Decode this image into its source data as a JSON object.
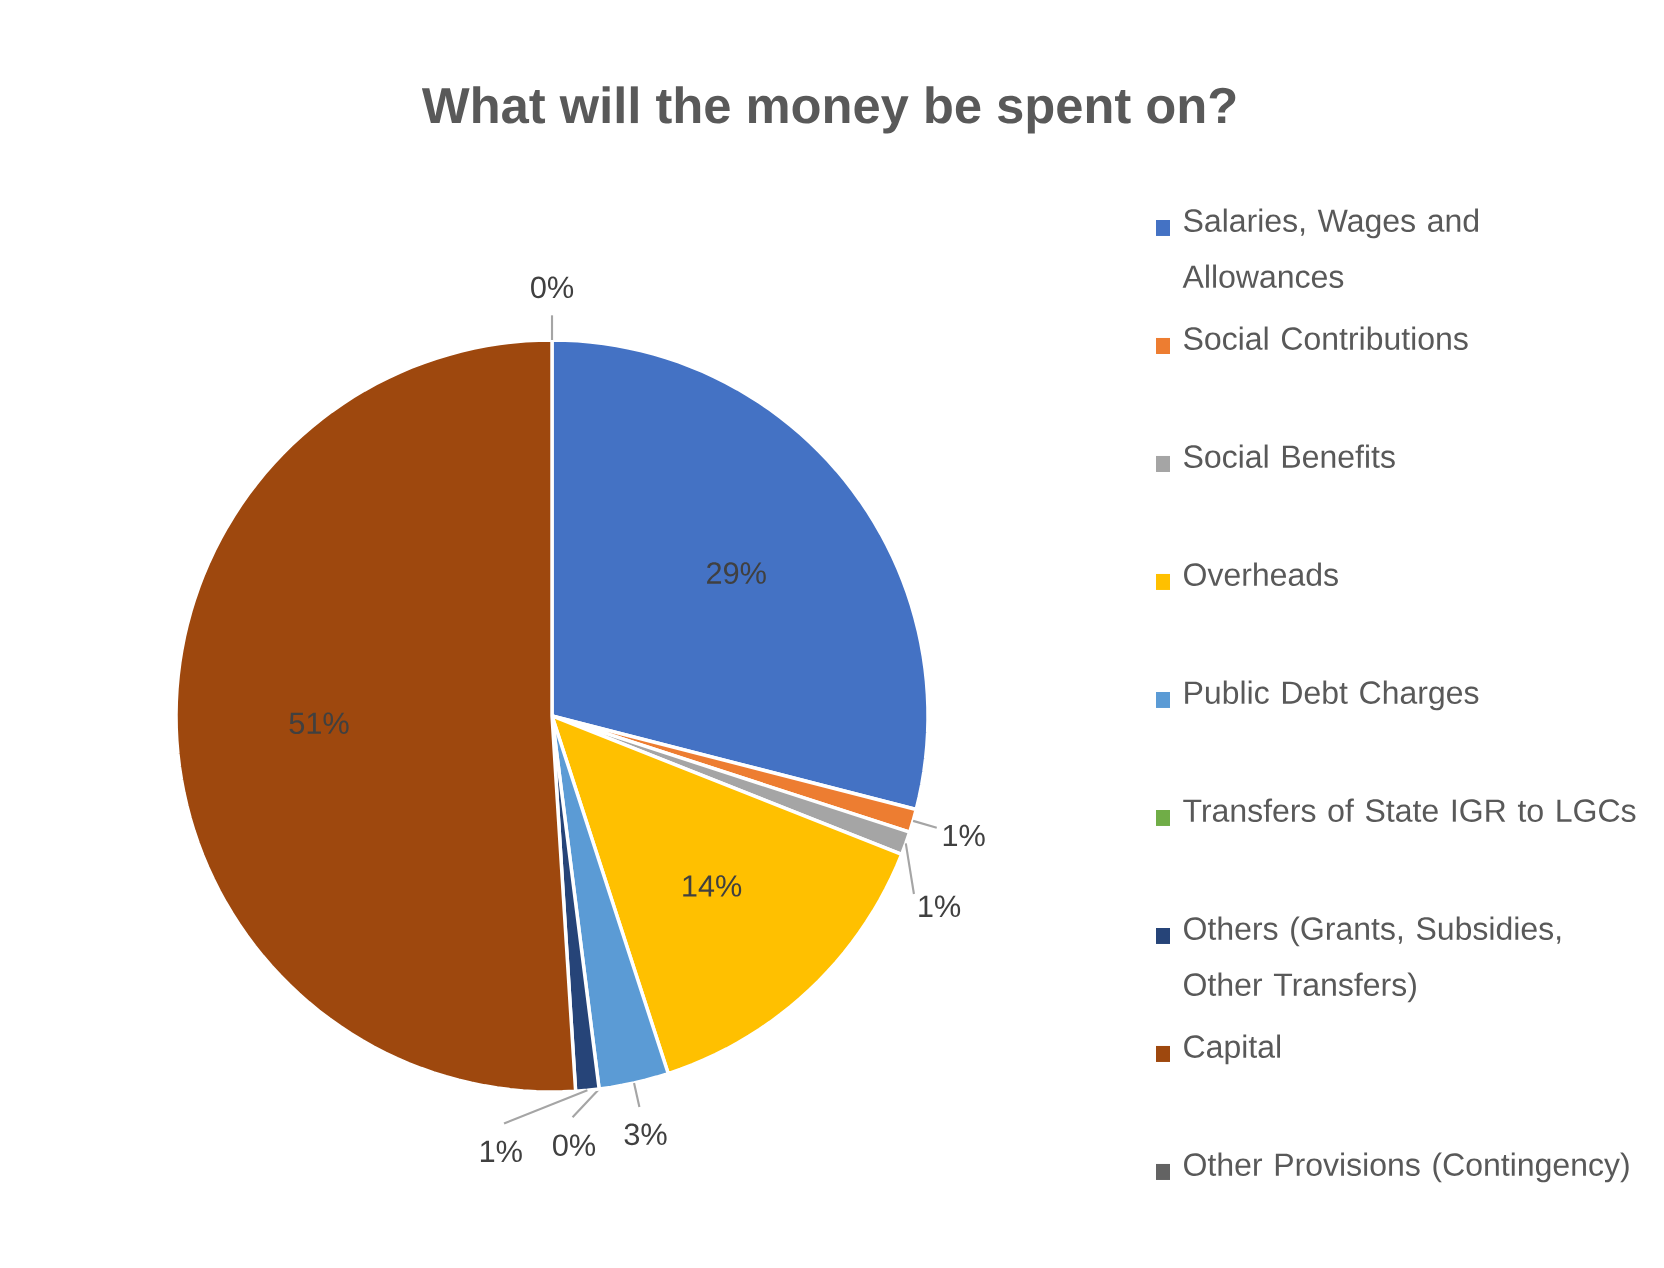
{
  "chart_data": {
    "type": "pie",
    "title": "What will the money be spent on?",
    "categories": [
      "Salaries, Wages and Allowances",
      "Social Contributions",
      "Social Benefits",
      "Overheads",
      "Public Debt Charges",
      "Transfers of State IGR to LGCs",
      "Others (Grants, Subsidies, Other Transfers)",
      "Capital",
      "Other Provisions (Contingency)"
    ],
    "values": [
      29,
      1,
      1,
      14,
      3,
      0,
      1,
      51,
      0
    ],
    "colors": [
      "#4472c4",
      "#ed7d31",
      "#a5a5a5",
      "#ffc000",
      "#5b9bd5",
      "#70ad47",
      "#264478",
      "#9e480e",
      "#636363"
    ],
    "value_labels": [
      "29%",
      "1%",
      "1%",
      "14%",
      "3%",
      "0%",
      "1%",
      "51%",
      "0%"
    ],
    "legend": "right"
  }
}
